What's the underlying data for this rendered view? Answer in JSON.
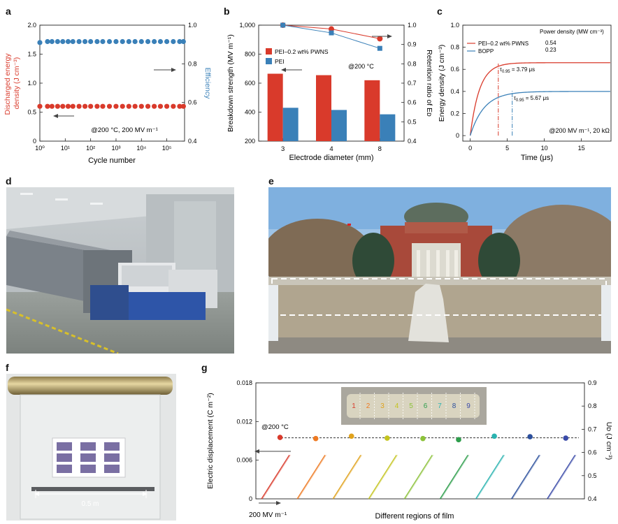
{
  "panels": {
    "a": "a",
    "b": "b",
    "c": "c",
    "d": "d",
    "e": "e",
    "f": "f",
    "g": "g"
  },
  "colors": {
    "red": "#d93a2b",
    "blue": "#3a80b8",
    "photo_sky": "#9ec3e6"
  },
  "chart_data": [
    {
      "id": "a",
      "type": "scatter",
      "xlabel": "Cycle number",
      "ylabel": "Discharged energy density (J cm⁻³)",
      "ylabel_lines": [
        "Discharged energy",
        "density (J cm⁻³)"
      ],
      "y2label": "Efficiency",
      "x_scale": "log",
      "xlim": [
        1,
        500000
      ],
      "ylim": [
        0,
        2.0
      ],
      "y2lim": [
        0.4,
        1.0
      ],
      "xticks": [
        "10⁰",
        "10¹",
        "10²",
        "10³",
        "10⁴",
        "10⁵"
      ],
      "yticks": [
        "0",
        "0.5",
        "1.0",
        "1.5",
        "2.0"
      ],
      "y2ticks": [
        "0.4",
        "0.6",
        "0.8",
        "1.0"
      ],
      "annotation": "@200 °C, 200 MV m⁻¹",
      "series": [
        {
          "axis": "left",
          "color": "#d93a2b",
          "x": [
            1,
            2,
            3,
            5,
            8,
            13,
            20,
            35,
            60,
            100,
            180,
            300,
            550,
            1000,
            1800,
            3200,
            5600,
            10000,
            18000,
            32000,
            56000,
            100000,
            180000,
            320000,
            450000
          ],
          "y": [
            0.6,
            0.6,
            0.6,
            0.6,
            0.6,
            0.6,
            0.6,
            0.6,
            0.6,
            0.6,
            0.6,
            0.6,
            0.6,
            0.6,
            0.6,
            0.6,
            0.6,
            0.6,
            0.6,
            0.6,
            0.6,
            0.6,
            0.6,
            0.6,
            0.6
          ]
        },
        {
          "axis": "right",
          "color": "#3a80b8",
          "x": [
            1,
            2,
            3,
            5,
            8,
            13,
            20,
            35,
            60,
            100,
            180,
            300,
            550,
            1000,
            1800,
            3200,
            5600,
            10000,
            18000,
            32000,
            56000,
            100000,
            180000,
            320000,
            450000
          ],
          "y": [
            0.91,
            0.915,
            0.915,
            0.915,
            0.915,
            0.915,
            0.915,
            0.915,
            0.915,
            0.915,
            0.915,
            0.915,
            0.915,
            0.915,
            0.915,
            0.915,
            0.915,
            0.915,
            0.915,
            0.915,
            0.915,
            0.915,
            0.915,
            0.915,
            0.915
          ]
        }
      ]
    },
    {
      "id": "b",
      "type": "bar",
      "xlabel": "Electrode diameter (mm)",
      "ylabel": "Breakdown strength (MV m⁻¹)",
      "y2label": "Retention ratio of Eᴅ",
      "categories": [
        "3",
        "4",
        "8"
      ],
      "ylim": [
        200,
        1000
      ],
      "y2lim": [
        0.4,
        1.0
      ],
      "yticks": [
        "200",
        "400",
        "600",
        "800",
        "1,000"
      ],
      "y2ticks": [
        "0.4",
        "0.5",
        "0.6",
        "0.7",
        "0.8",
        "0.9",
        "1.0"
      ],
      "annotation": "@200 °C",
      "series": [
        {
          "name": "PEI–0.2 wt% PWNS",
          "color": "#d93a2b",
          "values": [
            665,
            655,
            620
          ],
          "retention": [
            1.0,
            0.98,
            0.93
          ]
        },
        {
          "name": "PEI",
          "color": "#3a80b8",
          "values": [
            430,
            415,
            385
          ],
          "retention": [
            1.0,
            0.96,
            0.88
          ]
        }
      ]
    },
    {
      "id": "c",
      "type": "line",
      "xlabel": "Time (μs)",
      "ylabel": "Energy density (J cm⁻³)",
      "xlim": [
        -1,
        19
      ],
      "ylim": [
        -0.05,
        1.0
      ],
      "xticks": [
        "0",
        "5",
        "10",
        "15"
      ],
      "yticks": [
        "0",
        "0.2",
        "0.4",
        "0.6",
        "0.8",
        "1.0"
      ],
      "legend_title": "Power density (MW cm⁻³)",
      "annotation": "@200 MV m⁻¹, 20 kΩ",
      "series": [
        {
          "name": "PEI–0.2 wt% PWNS",
          "color": "#d93a2b",
          "power": "0.54",
          "plateau": 0.66,
          "tau": 1.26,
          "t95": 3.79,
          "label": "3.79 μs"
        },
        {
          "name": "BOPP",
          "color": "#3a80b8",
          "power": "0.23",
          "plateau": 0.4,
          "tau": 1.89,
          "t95": 5.67,
          "label": "5.67 μs"
        }
      ]
    },
    {
      "id": "g",
      "type": "line",
      "xlabel": "Different regions of film",
      "ylabel": "Electric displacement (C m⁻²)",
      "y2label": "Uᴅ (J cm⁻³)",
      "ylim": [
        0,
        0.018
      ],
      "y2lim": [
        0.4,
        0.9
      ],
      "yticks": [
        "0",
        "0.006",
        "0.012",
        "0.018"
      ],
      "y2ticks": [
        "0.4",
        "0.5",
        "0.6",
        "0.7",
        "0.8",
        "0.9"
      ],
      "annotation": "@200 °C",
      "field_label": "200 MV m⁻¹",
      "regions": [
        "1",
        "2",
        "3",
        "4",
        "5",
        "6",
        "7",
        "8",
        "9"
      ],
      "region_colors": [
        "#d93a2b",
        "#ee7a22",
        "#e0a21c",
        "#c4c41e",
        "#8cc23a",
        "#2e9e4c",
        "#2ab3b0",
        "#2b4f9c",
        "#3a4aa8"
      ],
      "ud_values": [
        0.665,
        0.66,
        0.67,
        0.662,
        0.66,
        0.655,
        0.67,
        0.668,
        0.662
      ],
      "ud_mean": 0.663
    }
  ]
}
